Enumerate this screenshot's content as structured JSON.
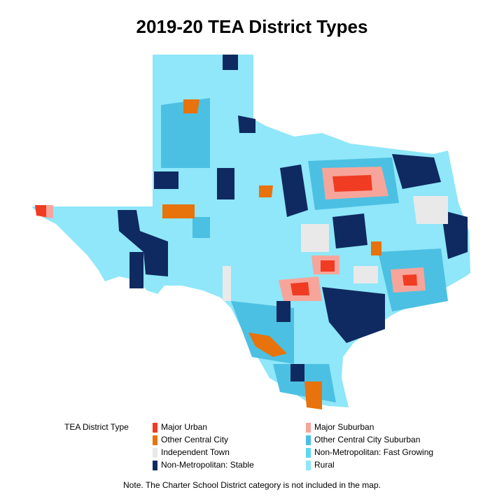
{
  "title": "2019-20 TEA District Types",
  "legend": {
    "title": "TEA District Type",
    "items": [
      {
        "name": "Major Urban",
        "color": "#f03c22"
      },
      {
        "name": "Other Central City",
        "color": "#e8720c"
      },
      {
        "name": "Independent Town",
        "color": "#e9e9ea"
      },
      {
        "name": "Non-Metropolitan: Stable",
        "color": "#0f2a60"
      },
      {
        "name": "Major Suburban",
        "color": "#f7a59b"
      },
      {
        "name": "Other Central City Suburban",
        "color": "#4cc0e2"
      },
      {
        "name": "Non-Metropolitan: Fast Growing",
        "color": "#5ed7f2"
      },
      {
        "name": "Rural",
        "color": "#8fe7f9"
      }
    ]
  },
  "note": "Note. The Charter School District category is not included in the map."
}
